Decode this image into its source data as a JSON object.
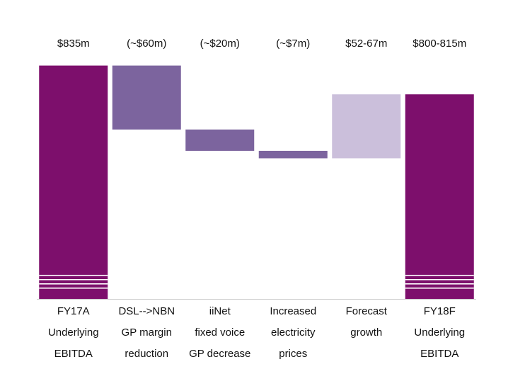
{
  "chart_data": {
    "type": "waterfall",
    "title": "",
    "xlabel": "",
    "ylabel": "",
    "ylim": [
      640,
      850
    ],
    "axis_break": true,
    "grid": false,
    "legend": "none",
    "categories": [
      [
        "FY17A",
        "Underlying",
        "EBITDA"
      ],
      [
        "DSL-->NBN",
        "GP margin",
        "reduction"
      ],
      [
        "iiNet",
        "fixed voice",
        "GP decrease"
      ],
      [
        "Increased",
        "electricity",
        "prices"
      ],
      [
        "Forecast",
        "growth"
      ],
      [
        "FY18F",
        "Underlying",
        "EBITDA"
      ]
    ],
    "bars": [
      {
        "label": "$835m",
        "kind": "total",
        "start": 0,
        "end": 835
      },
      {
        "label": "(~$60m)",
        "kind": "decrease",
        "start": 835,
        "end": 775
      },
      {
        "label": "(~$20m)",
        "kind": "decrease",
        "start": 775,
        "end": 755
      },
      {
        "label": "(~$7m)",
        "kind": "decrease",
        "start": 755,
        "end": 748
      },
      {
        "label": "$52-67m",
        "kind": "increase",
        "start": 748,
        "end": 808
      },
      {
        "label": "$800-815m",
        "kind": "total",
        "start": 0,
        "end": 808
      }
    ],
    "colors": {
      "total": "#7d0f6c",
      "decrease": "#7c649e",
      "increase": "#cbbfdb",
      "axis": "#c8c8c8"
    }
  }
}
